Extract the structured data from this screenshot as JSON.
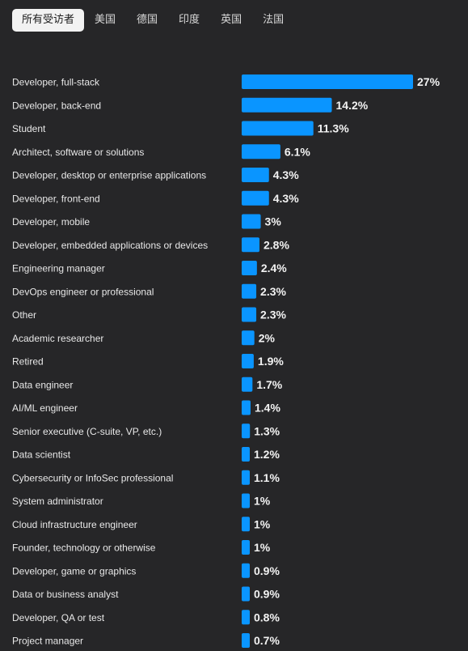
{
  "tabs": [
    {
      "label": "所有受访者",
      "active": true
    },
    {
      "label": "美国",
      "active": false
    },
    {
      "label": "德国",
      "active": false
    },
    {
      "label": "印度",
      "active": false
    },
    {
      "label": "英国",
      "active": false
    },
    {
      "label": "法国",
      "active": false
    }
  ],
  "colors": {
    "bar": "#0a95ff",
    "background": "#262628"
  },
  "chart_data": {
    "type": "bar",
    "orientation": "horizontal",
    "title": "",
    "xlabel": "",
    "ylabel": "",
    "xlim": [
      0,
      27
    ],
    "grid": false,
    "categories": [
      "Developer, full-stack",
      "Developer, back-end",
      "Student",
      "Architect, software or solutions",
      "Developer, desktop or enterprise applications",
      "Developer, front-end",
      "Developer, mobile",
      "Developer, embedded applications or devices",
      "Engineering manager",
      "DevOps engineer or professional",
      "Other",
      "Academic researcher",
      "Retired",
      "Data engineer",
      "AI/ML engineer",
      "Senior executive (C-suite, VP, etc.)",
      "Data scientist",
      "Cybersecurity or InfoSec professional",
      "System administrator",
      "Cloud infrastructure engineer",
      "Founder, technology or otherwise",
      "Developer, game or graphics",
      "Data or business analyst",
      "Developer, QA or test",
      "Project manager"
    ],
    "values": [
      27,
      14.2,
      11.3,
      6.1,
      4.3,
      4.3,
      3,
      2.8,
      2.4,
      2.3,
      2.3,
      2,
      1.9,
      1.7,
      1.4,
      1.3,
      1.2,
      1.1,
      1,
      1,
      1,
      0.9,
      0.9,
      0.8,
      0.7
    ],
    "value_labels": [
      "27%",
      "14.2%",
      "11.3%",
      "6.1%",
      "4.3%",
      "4.3%",
      "3%",
      "2.8%",
      "2.4%",
      "2.3%",
      "2.3%",
      "2%",
      "1.9%",
      "1.7%",
      "1.4%",
      "1.3%",
      "1.2%",
      "1.1%",
      "1%",
      "1%",
      "1%",
      "0.9%",
      "0.9%",
      "0.8%",
      "0.7%"
    ]
  }
}
